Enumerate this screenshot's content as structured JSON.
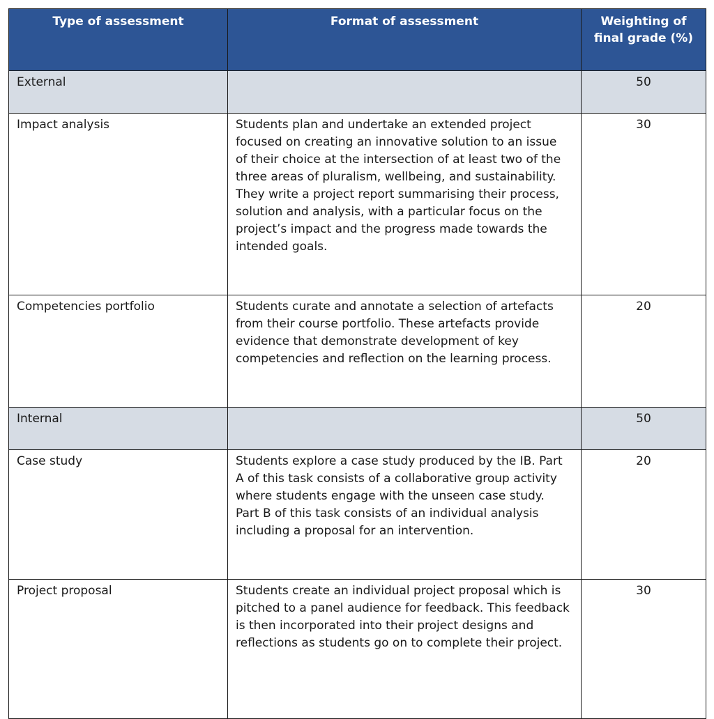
{
  "table": {
    "headers": [
      "Type of assessment",
      "Format of assessment",
      "Weighting of final grade (%)"
    ],
    "rows": [
      {
        "type": "External",
        "format": "",
        "weight": "50",
        "group": true
      },
      {
        "type": "Impact analysis",
        "format": "Students plan and undertake an extended project focused on creating an innovative solution to an issue of their choice  at the intersection of at least two of the three areas of pluralism, wellbeing, and sustainability. They write a project report summarising their process, solution and analysis, with a particular focus on the project’s impact and the progress made towards the intended goals.",
        "weight": "30"
      },
      {
        "type": "Competencies portfolio",
        "format": "Students curate and annotate a selection of artefacts from their course portfolio. These artefacts provide evidence that demonstrate development of key competencies and reflection on the learning process.",
        "weight": "20"
      },
      {
        "type": "Internal",
        "format": "",
        "weight": "50",
        "group": true
      },
      {
        "type": "Case study",
        "format": "Students explore a case study produced by the IB. Part A of this task consists of a collaborative group activity where students engage with the unseen case study. Part B of this task consists of an individual analysis including a proposal for an intervention.",
        "weight": "20"
      },
      {
        "type": "Project proposal",
        "format": "Students create an individual project proposal which is pitched to a panel audience for feedback. This feedback is then incorporated into their project designs and reflections as students go on to complete their project.",
        "weight": "30"
      }
    ]
  },
  "colors": {
    "header": "#2d5595",
    "group_row": "#d6dce4"
  }
}
